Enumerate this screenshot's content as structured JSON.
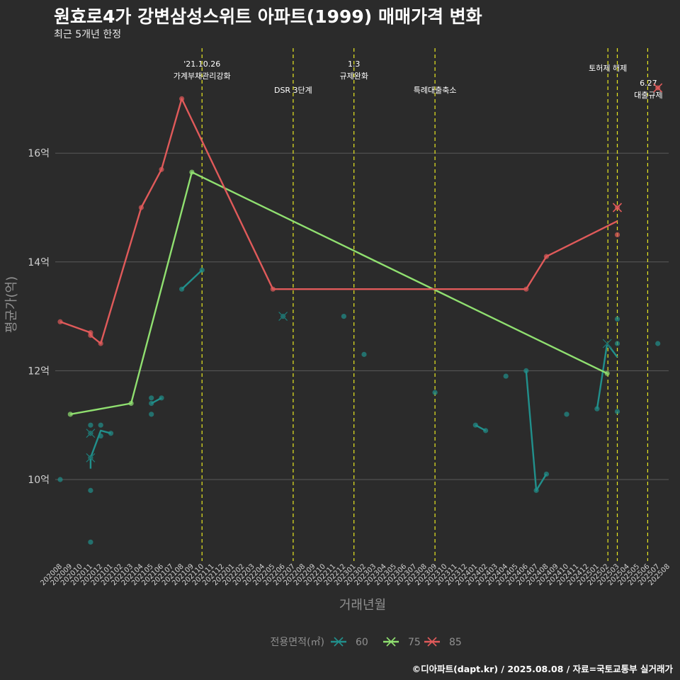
{
  "title": "원효로4가 강변삼성스위트 아파트(1999) 매매가격 변화",
  "subtitle": "최근 5개년 한정",
  "caption": "©디아파트(dapt.kr) / 2025.08.08 / 자료=국토교통부 실거래가",
  "colors": {
    "s60": "#21908c",
    "s75": "#90e070",
    "s85": "#e05a5a",
    "vline": "#e8e820",
    "grid": "#5a5a5a",
    "axis_text": "#d0d0d0",
    "title_axis": "#909090"
  },
  "chart_data": {
    "type": "line",
    "xlabel": "거래년월",
    "ylabel": "평균가(억)",
    "x_categories": [
      "202008",
      "202009",
      "202010",
      "202011",
      "202012",
      "202101",
      "202102",
      "202103",
      "202104",
      "202105",
      "202106",
      "202107",
      "202108",
      "202109",
      "202110",
      "202111",
      "202112",
      "202201",
      "202202",
      "202203",
      "202204",
      "202205",
      "202206",
      "202207",
      "202208",
      "202209",
      "202210",
      "202211",
      "202212",
      "202301",
      "202302",
      "202303",
      "202304",
      "202305",
      "202306",
      "202307",
      "202308",
      "202309",
      "202310",
      "202311",
      "202312",
      "202401",
      "202402",
      "202403",
      "202404",
      "202405",
      "202406",
      "202407",
      "202408",
      "202409",
      "202410",
      "202411",
      "202412",
      "202501",
      "202502",
      "202503",
      "202504",
      "202505",
      "202506",
      "202507",
      "202508"
    ],
    "y_ticks": [
      10,
      12,
      14,
      16
    ],
    "y_tick_labels": [
      "10억",
      "12억",
      "14억",
      "16억"
    ],
    "ylim": [
      8.5,
      17.7
    ],
    "legend": {
      "title": "전용면적(㎡)",
      "placement": "bottom",
      "items": [
        "60",
        "75",
        "85"
      ]
    },
    "series": [
      {
        "name": "60",
        "color": "#21908c",
        "line": [
          [
            "202011",
            10.2
          ],
          [
            "202011",
            10.4
          ],
          [
            "202012",
            10.9
          ],
          [
            "202101",
            10.85
          ],
          null,
          [
            "202105",
            11.4
          ],
          [
            "202106",
            11.5
          ],
          null,
          [
            "202108",
            13.5
          ],
          [
            "202110",
            13.85
          ],
          null,
          [
            "202401",
            11.0
          ],
          [
            "202402",
            10.9
          ],
          null,
          [
            "202406",
            12.0
          ],
          [
            "202407",
            9.8
          ],
          [
            "202408",
            10.1
          ],
          null,
          [
            "202501",
            11.3
          ],
          [
            "202502",
            12.5
          ],
          [
            "202503",
            12.25
          ]
        ],
        "points": [
          [
            "202008",
            10.0
          ],
          [
            "202011",
            11.0
          ],
          [
            "202011",
            10.85
          ],
          [
            "202011",
            9.8
          ],
          [
            "202011",
            8.85
          ],
          [
            "202011",
            10.4
          ],
          [
            "202012",
            11.0
          ],
          [
            "202012",
            10.8
          ],
          [
            "202101",
            10.85
          ],
          [
            "202105",
            11.5
          ],
          [
            "202105",
            11.4
          ],
          [
            "202105",
            11.2
          ],
          [
            "202106",
            11.5
          ],
          [
            "202108",
            13.5
          ],
          [
            "202110",
            13.85
          ],
          [
            "202206",
            13.0
          ],
          [
            "202212",
            13.0
          ],
          [
            "202302",
            12.3
          ],
          [
            "202309",
            11.6
          ],
          [
            "202401",
            11.0
          ],
          [
            "202402",
            10.9
          ],
          [
            "202404",
            11.9
          ],
          [
            "202406",
            12.0
          ],
          [
            "202407",
            9.8
          ],
          [
            "202408",
            10.1
          ],
          [
            "202410",
            11.2
          ],
          [
            "202501",
            11.3
          ],
          [
            "202503",
            12.5
          ],
          [
            "202503",
            12.95
          ],
          [
            "202503",
            11.25
          ],
          [
            "202507",
            12.5
          ]
        ],
        "cross_points": [
          [
            "202011",
            10.85
          ],
          [
            "202011",
            10.4
          ],
          [
            "202206",
            13.0
          ],
          [
            "202502",
            12.5
          ]
        ]
      },
      {
        "name": "75",
        "color": "#90e070",
        "line": [
          [
            "202009",
            11.2
          ],
          [
            "202103",
            11.4
          ],
          [
            "202109",
            15.65
          ],
          [
            "202502",
            11.95
          ]
        ],
        "points": [
          [
            "202009",
            11.2
          ],
          [
            "202103",
            11.4
          ],
          [
            "202109",
            15.65
          ],
          [
            "202502",
            11.95
          ]
        ],
        "cross_points": []
      },
      {
        "name": "85",
        "color": "#e05a5a",
        "line": [
          [
            "202008",
            12.9
          ],
          [
            "202011",
            12.7
          ],
          [
            "202011",
            12.65
          ],
          [
            "202012",
            12.5
          ],
          [
            "202104",
            15.0
          ],
          [
            "202106",
            15.7
          ],
          [
            "202108",
            17.0
          ],
          [
            "202205",
            13.5
          ],
          [
            "202406",
            13.5
          ],
          [
            "202408",
            14.1
          ],
          [
            "202503",
            14.75
          ]
        ],
        "points": [
          [
            "202008",
            12.9
          ],
          [
            "202011",
            12.7
          ],
          [
            "202011",
            12.65
          ],
          [
            "202012",
            12.5
          ],
          [
            "202104",
            15.0
          ],
          [
            "202106",
            15.7
          ],
          [
            "202108",
            17.0
          ],
          [
            "202205",
            13.5
          ],
          [
            "202406",
            13.5
          ],
          [
            "202408",
            14.1
          ],
          [
            "202503",
            15.0
          ],
          [
            "202503",
            14.5
          ],
          [
            "202507",
            17.2
          ]
        ],
        "cross_points": [
          [
            "202503",
            15.0
          ],
          [
            "202507",
            17.2
          ]
        ]
      }
    ],
    "annotations": [
      {
        "x": "202110",
        "lines": [
          "'21.10.26",
          "가계부채관리강화"
        ],
        "row": 0
      },
      {
        "x": "202207",
        "lines": [
          "DSR 3단계"
        ],
        "row": 1
      },
      {
        "x": "202301",
        "lines": [
          "1.3",
          "규제완화"
        ],
        "row": 0
      },
      {
        "x": "202309",
        "lines": [
          "특례대출축소"
        ],
        "row": 1
      },
      {
        "x": "202502",
        "lines": [
          "토허제 해제"
        ],
        "row": 0,
        "offset": 1
      },
      {
        "x": "202503",
        "lines": [],
        "row": 0
      },
      {
        "x": "202506",
        "lines": [
          "6.27",
          "대출규제"
        ],
        "row": 2
      }
    ]
  }
}
